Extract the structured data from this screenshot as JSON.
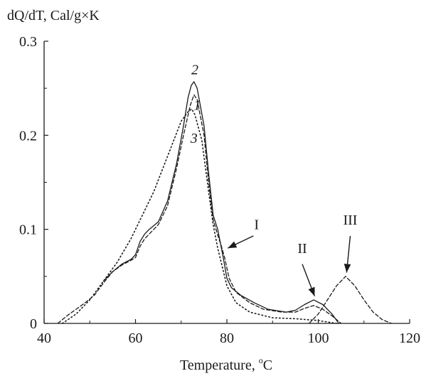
{
  "chart_data": {
    "type": "line",
    "ylabel": "dQ/dT, Cal/g×K",
    "xlabel_prefix": "Temperature, ",
    "xlabel_sup": "o",
    "xlabel_unit": "C",
    "xlim": [
      40,
      120
    ],
    "ylim": [
      0,
      0.3
    ],
    "x_ticks": [
      40,
      60,
      80,
      100,
      120
    ],
    "y_ticks": [
      0,
      0.1,
      0.2,
      0.3
    ],
    "x_tick_labels": [
      "40",
      "60",
      "80",
      "100",
      "120"
    ],
    "y_tick_labels": [
      "0",
      "0.1",
      "0.2",
      "0.3"
    ],
    "grid": false,
    "series": [
      {
        "name": "1",
        "style": "dashed",
        "points": [
          [
            43,
            0
          ],
          [
            45,
            0.008
          ],
          [
            47,
            0.015
          ],
          [
            49,
            0.022
          ],
          [
            51,
            0.03
          ],
          [
            53,
            0.043
          ],
          [
            55,
            0.055
          ],
          [
            57,
            0.062
          ],
          [
            59,
            0.067
          ],
          [
            60,
            0.07
          ],
          [
            61,
            0.082
          ],
          [
            62,
            0.09
          ],
          [
            63,
            0.095
          ],
          [
            65,
            0.105
          ],
          [
            67,
            0.125
          ],
          [
            69,
            0.165
          ],
          [
            70.5,
            0.2
          ],
          [
            72,
            0.232
          ],
          [
            72.8,
            0.243
          ],
          [
            73.5,
            0.238
          ],
          [
            75,
            0.2
          ],
          [
            76,
            0.15
          ],
          [
            77,
            0.11
          ],
          [
            78,
            0.094
          ],
          [
            78.8,
            0.082
          ],
          [
            79.5,
            0.07
          ],
          [
            80.5,
            0.048
          ],
          [
            82,
            0.033
          ],
          [
            85,
            0.022
          ],
          [
            88,
            0.015
          ],
          [
            92,
            0.012
          ],
          [
            95,
            0.012
          ],
          [
            97,
            0.016
          ],
          [
            99,
            0.019
          ],
          [
            101,
            0.015
          ],
          [
            103,
            0.008
          ],
          [
            105,
            0
          ]
        ]
      },
      {
        "name": "2",
        "style": "solid",
        "points": [
          [
            53,
            0.045
          ],
          [
            55,
            0.055
          ],
          [
            57,
            0.063
          ],
          [
            59,
            0.068
          ],
          [
            60,
            0.073
          ],
          [
            61,
            0.087
          ],
          [
            62,
            0.095
          ],
          [
            63,
            0.1
          ],
          [
            65,
            0.108
          ],
          [
            67,
            0.13
          ],
          [
            69,
            0.17
          ],
          [
            70.5,
            0.21
          ],
          [
            71.5,
            0.24
          ],
          [
            72.2,
            0.253
          ],
          [
            72.8,
            0.257
          ],
          [
            73.5,
            0.25
          ],
          [
            75,
            0.21
          ],
          [
            76,
            0.16
          ],
          [
            77,
            0.115
          ],
          [
            78,
            0.1
          ],
          [
            78.6,
            0.085
          ],
          [
            79.2,
            0.07
          ],
          [
            80,
            0.048
          ],
          [
            81,
            0.038
          ],
          [
            83,
            0.03
          ],
          [
            86,
            0.022
          ],
          [
            89,
            0.015
          ],
          [
            93,
            0.012
          ],
          [
            95,
            0.014
          ],
          [
            97,
            0.02
          ],
          [
            99,
            0.025
          ],
          [
            101,
            0.02
          ],
          [
            103,
            0.01
          ],
          [
            104.5,
            0
          ]
        ]
      },
      {
        "name": "3",
        "style": "dotted",
        "points": [
          [
            44,
            0
          ],
          [
            47,
            0.01
          ],
          [
            50,
            0.025
          ],
          [
            53,
            0.045
          ],
          [
            56,
            0.065
          ],
          [
            59,
            0.09
          ],
          [
            62,
            0.12
          ],
          [
            64,
            0.14
          ],
          [
            66,
            0.165
          ],
          [
            68,
            0.19
          ],
          [
            70,
            0.215
          ],
          [
            71.5,
            0.225
          ],
          [
            72.3,
            0.228
          ],
          [
            73,
            0.222
          ],
          [
            74.5,
            0.195
          ],
          [
            76,
            0.14
          ],
          [
            77,
            0.105
          ],
          [
            78,
            0.08
          ],
          [
            79,
            0.06
          ],
          [
            80,
            0.04
          ],
          [
            82,
            0.022
          ],
          [
            85,
            0.012
          ],
          [
            90,
            0.006
          ],
          [
            95,
            0.005
          ],
          [
            100,
            0.003
          ],
          [
            104,
            0
          ]
        ]
      },
      {
        "name": "III",
        "style": "dashed",
        "points": [
          [
            98,
            0
          ],
          [
            100,
            0.01
          ],
          [
            102,
            0.025
          ],
          [
            104,
            0.04
          ],
          [
            106,
            0.05
          ],
          [
            108,
            0.04
          ],
          [
            110,
            0.025
          ],
          [
            112,
            0.012
          ],
          [
            114,
            0.004
          ],
          [
            116,
            0
          ]
        ]
      }
    ],
    "curve_labels": [
      {
        "text": "2",
        "x": 73.0,
        "y": 0.265
      },
      {
        "text": "1",
        "x": 73.5,
        "y": 0.227
      },
      {
        "text": "3",
        "x": 72.8,
        "y": 0.192
      }
    ],
    "annotations": [
      {
        "text": "I",
        "text_x": 86.5,
        "text_y": 0.1,
        "arrow_from": [
          85.8,
          0.093
        ],
        "arrow_to": [
          80.2,
          0.08
        ]
      },
      {
        "text": "II",
        "text_x": 96.5,
        "text_y": 0.075,
        "arrow_from": [
          96.5,
          0.063
        ],
        "arrow_to": [
          99.2,
          0.029
        ]
      },
      {
        "text": "III",
        "text_x": 107,
        "text_y": 0.105,
        "arrow_from": [
          107,
          0.093
        ],
        "arrow_to": [
          106.2,
          0.054
        ]
      }
    ]
  }
}
